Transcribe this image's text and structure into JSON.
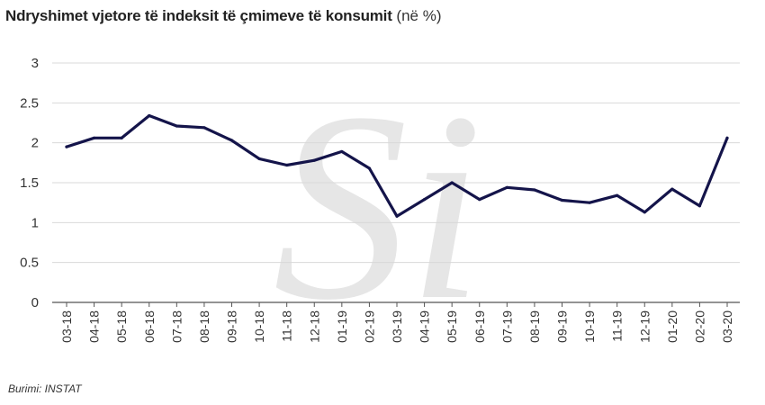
{
  "header": {
    "title": "Ndryshimet vjetore të indeksit të çmimeve të konsumit",
    "unit": "(në %)"
  },
  "footer": {
    "source": "Burimi: INSTAT"
  },
  "watermark": {
    "text": "Si",
    "color": "#e6e6e6"
  },
  "colors": {
    "line": "#14144a",
    "grid": "#d9d9d9",
    "axis": "#555555"
  },
  "chart_data": {
    "type": "line",
    "title": "Ndryshimet vjetore të indeksit të çmimeve të konsumit (në %)",
    "xlabel": "",
    "ylabel": "",
    "ylim": [
      0,
      3
    ],
    "yticks": [
      "0",
      "0.5",
      "1",
      "1.5",
      "2",
      "2.5",
      "3"
    ],
    "grid": true,
    "categories": [
      "03-18",
      "04-18",
      "05-18",
      "06-18",
      "07-18",
      "08-18",
      "09-18",
      "10-18",
      "11-18",
      "12-18",
      "01-19",
      "02-19",
      "03-19",
      "04-19",
      "05-19",
      "06-19",
      "07-19",
      "08-19",
      "09-19",
      "10-19",
      "11-19",
      "12-19",
      "01-20",
      "02-20",
      "03-20"
    ],
    "series": [
      {
        "values": [
          1.95,
          2.06,
          2.06,
          2.34,
          2.21,
          2.19,
          2.03,
          1.8,
          1.72,
          1.78,
          1.89,
          1.68,
          1.08,
          1.29,
          1.5,
          1.29,
          1.44,
          1.41,
          1.28,
          1.25,
          1.34,
          1.13,
          1.42,
          1.21,
          2.06
        ]
      }
    ]
  }
}
